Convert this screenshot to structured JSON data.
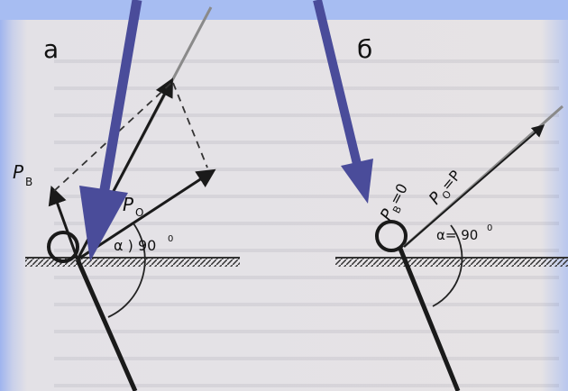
{
  "panels": [
    {
      "letter": "а",
      "labels": {
        "p_b": "P",
        "p_b_sub": "B",
        "p_o": "P",
        "p_o_sub": "O",
        "angle": "α ) 90",
        "deg": "0"
      }
    },
    {
      "letter": "б",
      "labels": {
        "p_b": "P",
        "p_b_sub": "B",
        "p_b_eq": "=0",
        "p_o": "P",
        "p_o_sub": "O",
        "p_o_eq": "=P",
        "angle": "α= 90",
        "deg": "0"
      }
    }
  ],
  "colors": {
    "pointer": "#4a4c9a",
    "ink": "#1a1a1a",
    "ground": "#333333"
  }
}
